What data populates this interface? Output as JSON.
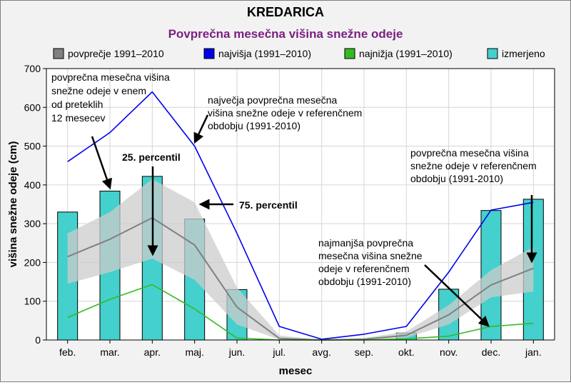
{
  "chart_data": {
    "type": "bar+line",
    "title": "KREDARICA",
    "subtitle": "Povprečna mesečna višina snežne odeje",
    "xlabel": "mesec",
    "ylabel": "višina snežne odeje (cm)",
    "ylim": [
      0,
      700
    ],
    "yticks": [
      "0",
      "100",
      "200",
      "300",
      "400",
      "500",
      "600",
      "700"
    ],
    "grid": true,
    "legend_position": "top",
    "categories": [
      "feb.",
      "mar.",
      "apr.",
      "maj.",
      "jun.",
      "jul.",
      "avg.",
      "sep.",
      "okt.",
      "nov.",
      "dec.",
      "jan."
    ],
    "legend": [
      {
        "name": "povprečje 1991–2010",
        "color": "#808080",
        "kind": "band"
      },
      {
        "name": "najvišja (1991–2010)",
        "color": "#0000ee",
        "kind": "line"
      },
      {
        "name": "najnižja (1991–2010)",
        "color": "#33bb22",
        "kind": "line"
      },
      {
        "name": "izmerjeno",
        "color": "#44d0cc",
        "kind": "bar"
      }
    ],
    "series": [
      {
        "name": "izmerjeno",
        "type": "bar",
        "color": "#44d0cc",
        "values": [
          330,
          384,
          422,
          312,
          130,
          0,
          0,
          0,
          18,
          131,
          334,
          363
        ]
      },
      {
        "name": "povprečje 1991–2010",
        "type": "line",
        "color": "#808080",
        "values": [
          215,
          260,
          315,
          245,
          85,
          4,
          0,
          2,
          12,
          65,
          142,
          185
        ]
      },
      {
        "name": "najvišja (1991–2010)",
        "type": "line",
        "color": "#0000ee",
        "values": [
          460,
          535,
          640,
          500,
          275,
          35,
          2,
          15,
          35,
          175,
          335,
          355
        ]
      },
      {
        "name": "najnižja (1991–2010)",
        "type": "line",
        "color": "#33bb22",
        "values": [
          58,
          105,
          143,
          80,
          5,
          0,
          0,
          0,
          3,
          10,
          35,
          43
        ]
      }
    ],
    "percentile_25": [
      145,
      175,
      210,
      155,
      40,
      1,
      0,
      0,
      6,
      40,
      110,
      125
    ],
    "percentile_75": [
      275,
      330,
      415,
      355,
      135,
      12,
      0,
      5,
      22,
      90,
      180,
      240
    ],
    "annotations": [
      {
        "id": "a1",
        "lines": [
          "povprečna mesečna višina",
          "snežne odeje v enem",
          "od preteklih",
          "12 mesecev"
        ],
        "bold": false
      },
      {
        "id": "a2",
        "lines": [
          "največja povprečna mesečna",
          "višina snežne odeje v referenčnem",
          "obdobju (1991-2010)"
        ],
        "bold": false
      },
      {
        "id": "a3",
        "lines": [
          "25. percentil"
        ],
        "bold": true
      },
      {
        "id": "a4",
        "lines": [
          "75. percentil"
        ],
        "bold": true
      },
      {
        "id": "a5",
        "lines": [
          "povprečna mesečna višina",
          "snežne odeje v referenčnem",
          "obdobju (1991-2010)"
        ],
        "bold": false
      },
      {
        "id": "a6",
        "lines": [
          "najmanjša povprečna",
          "mesečna višina snežne",
          "odeje v referenčnem",
          "obdobju (1991-2010)"
        ],
        "bold": false
      }
    ],
    "colors": {
      "title": "#000000",
      "subtitle": "#7b1f82",
      "background": "#f2f2f2",
      "plot_background": "#ffffff",
      "grid": "#d6d6d6",
      "band_fill": "#cccccc"
    }
  }
}
